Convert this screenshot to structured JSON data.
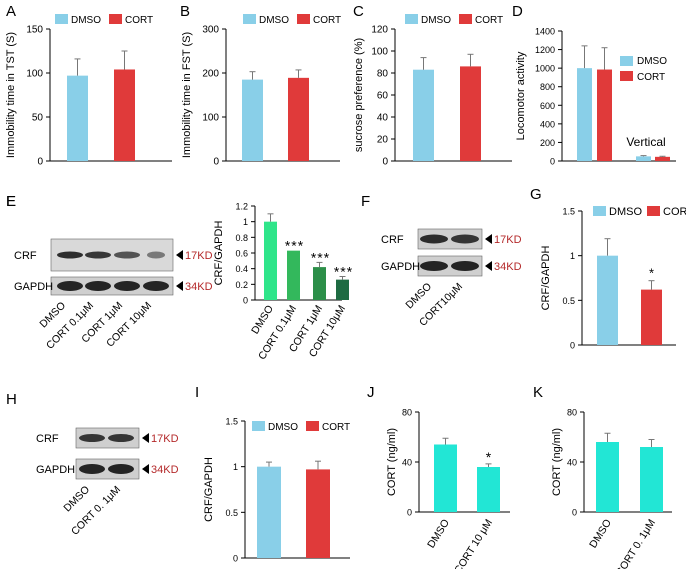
{
  "colors": {
    "dmso": "#89cfe8",
    "cort": "#e03a3a",
    "cyan": "#22e6d5",
    "green1": "#2fe58a",
    "green2": "#33b85c",
    "green3": "#2c8f49",
    "green4": "#1e6b42",
    "kd": "#b4292a",
    "axis": "#000000"
  },
  "legend": {
    "dmso": "DMSO",
    "cort": "CORT"
  },
  "kd_labels": {
    "kd17": "17KD",
    "kd34": "34KD"
  },
  "chart_data": [
    {
      "id": "A",
      "panel": "A",
      "type": "bar",
      "ylabel": "Immobility time in TST (S)",
      "ylim": [
        0,
        150
      ],
      "yticks": [
        0,
        50,
        100,
        150
      ],
      "categories": [
        "DMSO",
        "CORT"
      ],
      "values": [
        97,
        104
      ],
      "errors": [
        19,
        21
      ],
      "legend": "top",
      "grid": false
    },
    {
      "id": "B",
      "panel": "B",
      "type": "bar",
      "ylabel": "Immobility time in FST (S)",
      "ylim": [
        0,
        300
      ],
      "yticks": [
        0,
        100,
        200,
        300
      ],
      "categories": [
        "DMSO",
        "CORT"
      ],
      "values": [
        185,
        189
      ],
      "errors": [
        18,
        18
      ],
      "legend": "top",
      "grid": false
    },
    {
      "id": "C",
      "panel": "C",
      "type": "bar",
      "ylabel": "sucrose preference (%)",
      "ylim": [
        0,
        120
      ],
      "yticks": [
        0,
        20,
        40,
        60,
        80,
        100,
        120
      ],
      "categories": [
        "DMSO",
        "CORT"
      ],
      "values": [
        83,
        86
      ],
      "errors": [
        11,
        11
      ],
      "legend": "top",
      "grid": false
    },
    {
      "id": "D",
      "panel": "D",
      "type": "bar",
      "ylabel": "Locomotor activity",
      "ylim": [
        0,
        1400
      ],
      "yticks": [
        0,
        200,
        400,
        600,
        800,
        1000,
        1200,
        1400
      ],
      "groups": [
        "",
        "Vertical"
      ],
      "series": [
        {
          "name": "DMSO",
          "values": [
            1000,
            50
          ],
          "errors": [
            240,
            8
          ]
        },
        {
          "name": "CORT",
          "values": [
            985,
            45
          ],
          "errors": [
            235,
            6
          ]
        }
      ],
      "legend": "right",
      "grid": false
    },
    {
      "id": "E",
      "panel": "E",
      "type": "bar",
      "ylabel": "CRF/GAPDH",
      "ylim": [
        0,
        1.2
      ],
      "yticks": [
        0,
        0.2,
        0.4,
        0.6,
        0.8,
        1,
        1.2
      ],
      "categories": [
        "DMSO",
        "CORT 0.1μM",
        "CORT 1μM",
        "CORT 10μM"
      ],
      "values": [
        1.0,
        0.63,
        0.42,
        0.26
      ],
      "errors": [
        0.1,
        0.0,
        0.06,
        0.04
      ],
      "annotations": [
        "",
        "***",
        "***",
        "***"
      ],
      "grid": false
    },
    {
      "id": "G",
      "panel": "G",
      "type": "bar",
      "ylabel": "CRF/GAPDH",
      "ylim": [
        0,
        1.5
      ],
      "yticks": [
        0,
        0.5,
        1,
        1.5
      ],
      "categories": [
        "DMSO",
        "CORT"
      ],
      "values": [
        1.0,
        0.62
      ],
      "errors": [
        0.19,
        0.1
      ],
      "annotations": [
        "",
        "*"
      ],
      "legend": "top",
      "grid": false
    },
    {
      "id": "I",
      "panel": "I",
      "type": "bar",
      "ylabel": "CRF/GAPDH",
      "ylim": [
        0,
        1.5
      ],
      "yticks": [
        0,
        0.5,
        1,
        1.5
      ],
      "categories": [
        "DMSO",
        "CORT"
      ],
      "values": [
        1.0,
        0.97
      ],
      "errors": [
        0.05,
        0.09
      ],
      "legend": "top",
      "grid": false
    },
    {
      "id": "J",
      "panel": "J",
      "type": "bar",
      "ylabel": "CORT  (ng/ml)",
      "ylim": [
        0,
        80
      ],
      "yticks": [
        0,
        40,
        80
      ],
      "categories": [
        "DMSO",
        "CORT    10 μM"
      ],
      "values": [
        54,
        36
      ],
      "errors": [
        5,
        2.5
      ],
      "annotations": [
        "",
        "*"
      ],
      "grid": false
    },
    {
      "id": "K",
      "panel": "K",
      "type": "bar",
      "ylabel": "CORT  (ng/ml)",
      "ylim": [
        0,
        80
      ],
      "yticks": [
        0,
        40,
        80
      ],
      "categories": [
        "DMSO",
        "CORT    0. 1μM"
      ],
      "values": [
        56,
        52
      ],
      "errors": [
        7,
        6
      ],
      "grid": false
    }
  ],
  "blots": [
    {
      "id": "E",
      "panel": "E",
      "rows": [
        "CRF",
        "GAPDH"
      ],
      "kd": [
        "17KD",
        "34KD"
      ],
      "lanes": [
        "DMSO",
        "CORT 0.1μM",
        "CORT  1μM",
        "CORT 10μM"
      ]
    },
    {
      "id": "F",
      "panel": "F",
      "rows": [
        "CRF",
        "GAPDH"
      ],
      "kd": [
        "17KD",
        "34KD"
      ],
      "lanes": [
        "DMSO",
        "CORT10μM"
      ]
    },
    {
      "id": "H",
      "panel": "H",
      "rows": [
        "CRF",
        "GAPDH"
      ],
      "kd": [
        "17KD",
        "34KD"
      ],
      "lanes": [
        "DMSO",
        "CORT 0. 1μM"
      ]
    }
  ]
}
